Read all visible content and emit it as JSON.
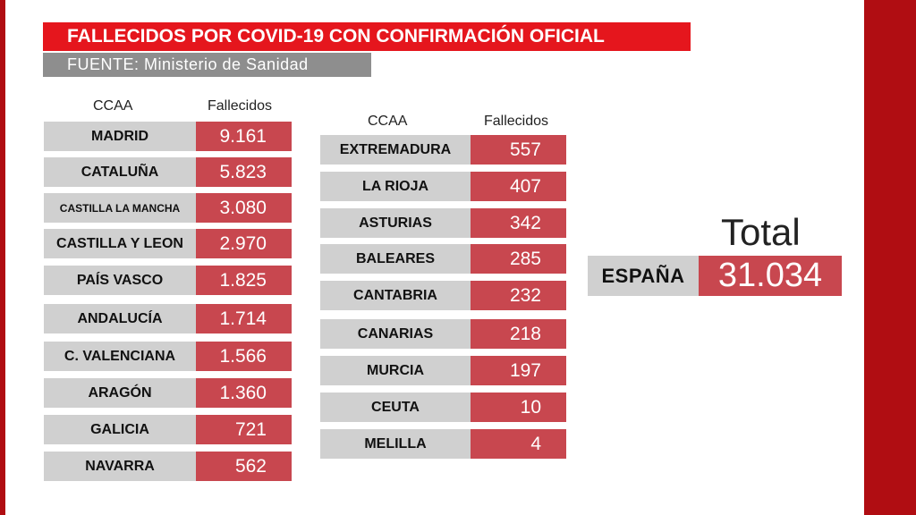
{
  "header": {
    "title": "FALLECIDOS POR COVID-19 CON CONFIRMACIÓN OFICIAL",
    "source": "FUENTE: Ministerio de Sanidad"
  },
  "table_left": {
    "col_region": "CCAA",
    "col_deaths": "Fallecidos",
    "rows": [
      {
        "region": "MADRID",
        "deaths": "9.161"
      },
      {
        "region": "CATALUÑA",
        "deaths": "5.823"
      },
      {
        "region": "CASTILLA LA MANCHA",
        "deaths": "3.080"
      },
      {
        "region": "CASTILLA Y LEON",
        "deaths": "2.970"
      },
      {
        "region": "PAÍS VASCO",
        "deaths": "1.825"
      },
      {
        "region": "ANDALUCÍA",
        "deaths": "1.714"
      },
      {
        "region": "C. VALENCIANA",
        "deaths": "1.566"
      },
      {
        "region": "ARAGÓN",
        "deaths": "1.360"
      },
      {
        "region": "GALICIA",
        "deaths": "721"
      },
      {
        "region": "NAVARRA",
        "deaths": "562"
      }
    ]
  },
  "table_right": {
    "col_region": "CCAA",
    "col_deaths": "Fallecidos",
    "rows": [
      {
        "region": "EXTREMADURA",
        "deaths": "557"
      },
      {
        "region": "LA RIOJA",
        "deaths": "407"
      },
      {
        "region": "ASTURIAS",
        "deaths": "342"
      },
      {
        "region": "BALEARES",
        "deaths": "285"
      },
      {
        "region": "CANTABRIA",
        "deaths": "232"
      },
      {
        "region": "CANARIAS",
        "deaths": "218"
      },
      {
        "region": "MURCIA",
        "deaths": "197"
      },
      {
        "region": "CEUTA",
        "deaths": "10"
      },
      {
        "region": "MELILLA",
        "deaths": "4"
      }
    ]
  },
  "total": {
    "label": "Total",
    "region": "ESPAÑA",
    "deaths": "31.034"
  },
  "colors": {
    "title_red": "#e5161d",
    "edge_red": "#b00d12",
    "value_red": "#c8474f",
    "source_gray": "#8e8e8e",
    "name_gray": "#d0d0d0"
  }
}
